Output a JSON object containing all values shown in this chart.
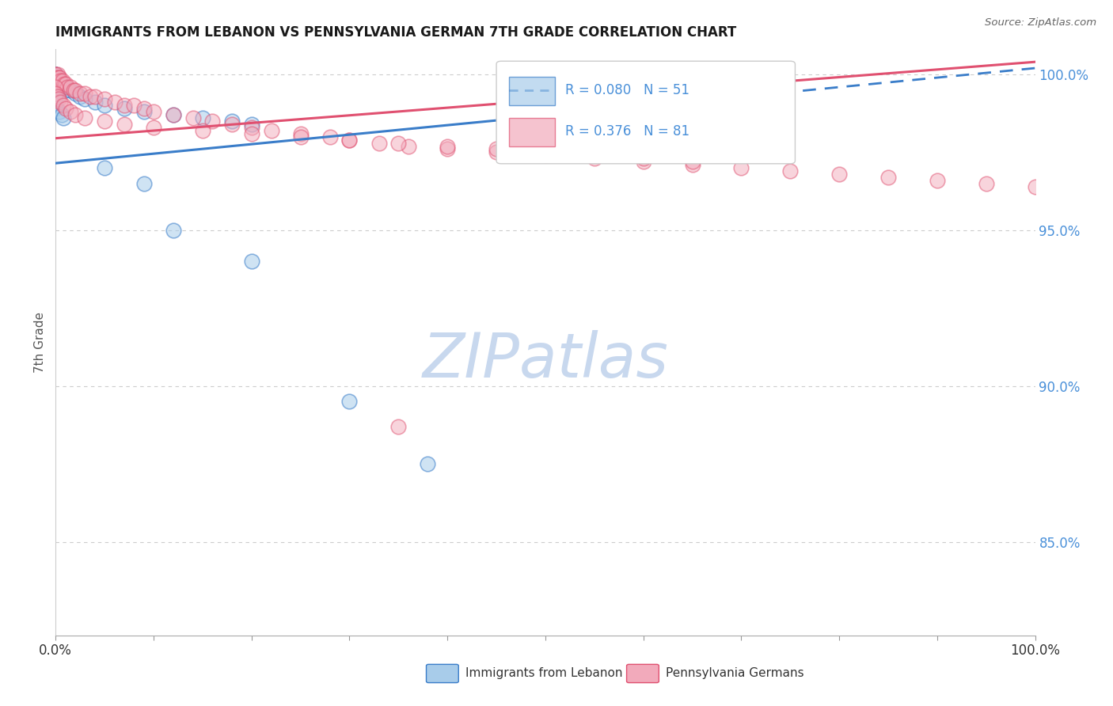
{
  "title": "IMMIGRANTS FROM LEBANON VS PENNSYLVANIA GERMAN 7TH GRADE CORRELATION CHART",
  "source": "Source: ZipAtlas.com",
  "ylabel": "7th Grade",
  "legend_label_blue": "Immigrants from Lebanon",
  "legend_label_pink": "Pennsylvania Germans",
  "R_blue": 0.08,
  "N_blue": 51,
  "R_pink": 0.376,
  "N_pink": 81,
  "xmin": 0.0,
  "xmax": 1.0,
  "ymin": 0.82,
  "ymax": 1.008,
  "yticks": [
    0.85,
    0.9,
    0.95,
    1.0
  ],
  "ytick_labels": [
    "85.0%",
    "90.0%",
    "95.0%",
    "100.0%"
  ],
  "color_blue": "#A8CCEA",
  "color_pink": "#F2AABB",
  "line_color_blue": "#3A7DC9",
  "line_color_pink": "#E05070",
  "watermark": "ZIPatlas",
  "watermark_color": "#C8D8EE",
  "title_fontsize": 12,
  "tick_color_right": "#4A90D9",
  "blue_scatter_x": [
    0.0,
    0.0,
    0.0,
    0.0,
    0.0,
    0.0,
    0.0,
    0.0,
    0.0,
    0.0,
    0.002,
    0.003,
    0.004,
    0.005,
    0.006,
    0.008,
    0.01,
    0.01,
    0.015,
    0.02,
    0.025,
    0.03,
    0.04,
    0.05,
    0.07,
    0.09,
    0.12,
    0.15,
    0.18,
    0.2,
    0.0,
    0.0,
    0.0,
    0.0,
    0.0,
    0.0,
    0.0,
    0.004,
    0.006,
    0.008,
    0.05,
    0.09,
    0.12,
    0.2,
    0.3,
    0.38
  ],
  "blue_scatter_y": [
    1.0,
    1.0,
    0.999,
    0.999,
    0.998,
    0.998,
    0.997,
    0.997,
    0.996,
    0.996,
    0.999,
    0.998,
    0.998,
    0.997,
    0.997,
    0.996,
    0.996,
    0.995,
    0.995,
    0.994,
    0.993,
    0.992,
    0.991,
    0.99,
    0.989,
    0.988,
    0.987,
    0.986,
    0.985,
    0.984,
    0.995,
    0.994,
    0.993,
    0.992,
    0.991,
    0.99,
    0.989,
    0.988,
    0.987,
    0.986,
    0.97,
    0.965,
    0.95,
    0.94,
    0.895,
    0.875
  ],
  "pink_scatter_x": [
    0.0,
    0.0,
    0.0,
    0.0,
    0.0,
    0.0,
    0.0,
    0.0,
    0.002,
    0.003,
    0.004,
    0.005,
    0.007,
    0.009,
    0.01,
    0.012,
    0.015,
    0.018,
    0.02,
    0.025,
    0.03,
    0.035,
    0.04,
    0.05,
    0.06,
    0.07,
    0.08,
    0.09,
    0.1,
    0.12,
    0.14,
    0.16,
    0.18,
    0.2,
    0.22,
    0.25,
    0.28,
    0.3,
    0.33,
    0.36,
    0.4,
    0.45,
    0.5,
    0.55,
    0.6,
    0.65,
    0.7,
    0.75,
    0.8,
    0.85,
    0.9,
    0.95,
    1.0,
    0.0,
    0.0,
    0.002,
    0.003,
    0.005,
    0.008,
    0.01,
    0.015,
    0.02,
    0.03,
    0.05,
    0.07,
    0.1,
    0.15,
    0.2,
    0.25,
    0.3,
    0.35,
    0.4,
    0.45,
    0.5,
    0.55,
    0.6,
    0.65,
    0.35
  ],
  "pink_scatter_y": [
    1.0,
    1.0,
    0.999,
    0.999,
    0.998,
    0.998,
    0.997,
    0.997,
    1.0,
    0.999,
    0.999,
    0.998,
    0.998,
    0.997,
    0.997,
    0.996,
    0.996,
    0.995,
    0.995,
    0.994,
    0.994,
    0.993,
    0.993,
    0.992,
    0.991,
    0.99,
    0.99,
    0.989,
    0.988,
    0.987,
    0.986,
    0.985,
    0.984,
    0.983,
    0.982,
    0.981,
    0.98,
    0.979,
    0.978,
    0.977,
    0.976,
    0.975,
    0.974,
    0.973,
    0.972,
    0.971,
    0.97,
    0.969,
    0.968,
    0.967,
    0.966,
    0.965,
    0.964,
    0.996,
    0.994,
    0.993,
    0.992,
    0.991,
    0.99,
    0.989,
    0.988,
    0.987,
    0.986,
    0.985,
    0.984,
    0.983,
    0.982,
    0.981,
    0.98,
    0.979,
    0.978,
    0.977,
    0.976,
    0.975,
    0.974,
    0.973,
    0.972,
    0.887
  ],
  "blue_line_x0": 0.0,
  "blue_line_x1": 1.0,
  "blue_line_y0": 0.9715,
  "blue_line_y1": 1.002,
  "pink_line_x0": 0.0,
  "pink_line_x1": 1.0,
  "pink_line_y0": 0.9795,
  "pink_line_y1": 1.004
}
